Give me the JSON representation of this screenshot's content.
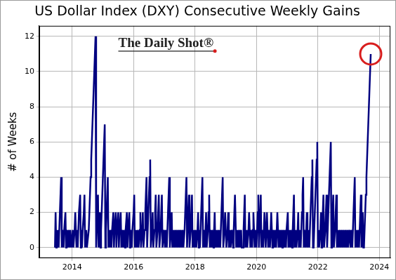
{
  "chart_data": {
    "type": "line",
    "title": "US Dollar Index (DXY) Consecutive Weekly Gains",
    "y_label": "# of Weeks",
    "annotation": "The Daily Shot®",
    "color": "#000080",
    "grid": true,
    "xlim": [
      2012.93,
      2024.36
    ],
    "xticks": [
      2014,
      2016,
      2018,
      2020,
      2022,
      2024
    ],
    "ylim": [
      -0.6,
      12.6
    ],
    "yticks": [
      0,
      2,
      4,
      6,
      8,
      10,
      12
    ],
    "x": [
      2013.44,
      2013.46,
      2013.48,
      2013.5,
      2013.52,
      2013.54,
      2013.56,
      2013.58,
      2013.6,
      2013.62,
      2013.64,
      2013.66,
      2013.68,
      2013.72,
      2013.74,
      2013.78,
      2013.8,
      2013.82,
      2013.86,
      2013.88,
      2013.92,
      2013.94,
      2013.98,
      2014.02,
      2014.04,
      2014.08,
      2014.1,
      2014.14,
      2014.16,
      2014.18,
      2014.2,
      2014.22,
      2014.26,
      2014.28,
      2014.3,
      2014.32,
      2014.34,
      2014.38,
      2014.4,
      2014.42,
      2014.46,
      2014.48,
      2014.54,
      2014.56,
      2014.58,
      2014.6,
      2014.62,
      2014.64,
      2014.66,
      2014.68,
      2014.7,
      2014.72,
      2014.74,
      2014.76,
      2014.78,
      2014.8,
      2014.82,
      2014.84,
      2014.86,
      2014.88,
      2014.9,
      2014.92,
      2014.94,
      2014.96,
      2014.98,
      2015.0,
      2015.02,
      2015.04,
      2015.06,
      2015.08,
      2015.1,
      2015.12,
      2015.14,
      2015.16,
      2015.18,
      2015.2,
      2015.22,
      2015.26,
      2015.28,
      2015.3,
      2015.34,
      2015.36,
      2015.38,
      2015.42,
      2015.44,
      2015.46,
      2015.5,
      2015.52,
      2015.54,
      2015.58,
      2015.6,
      2015.62,
      2015.66,
      2015.68,
      2015.72,
      2015.74,
      2015.78,
      2015.8,
      2015.82,
      2015.86,
      2015.88,
      2015.9,
      2015.94,
      2015.96,
      2016.0,
      2016.02,
      2016.04,
      2016.08,
      2016.1,
      2016.14,
      2016.16,
      2016.2,
      2016.22,
      2016.24,
      2016.28,
      2016.3,
      2016.32,
      2016.36,
      2016.38,
      2016.4,
      2016.42,
      2016.44,
      2016.46,
      2016.48,
      2016.5,
      2016.52,
      2016.54,
      2016.56,
      2016.6,
      2016.62,
      2016.64,
      2016.68,
      2016.7,
      2016.72,
      2016.74,
      2016.78,
      2016.8,
      2016.82,
      2016.84,
      2016.88,
      2016.9,
      2016.92,
      2016.94,
      2016.98,
      2017.02,
      2017.04,
      2017.08,
      2017.1,
      2017.12,
      2017.14,
      2017.16,
      2017.18,
      2017.22,
      2017.24,
      2017.26,
      2017.3,
      2017.32,
      2017.36,
      2017.38,
      2017.42,
      2017.44,
      2017.48,
      2017.5,
      2017.54,
      2017.56,
      2017.6,
      2017.62,
      2017.66,
      2017.68,
      2017.7,
      2017.72,
      2017.74,
      2017.76,
      2017.78,
      2017.8,
      2017.82,
      2017.86,
      2017.88,
      2017.9,
      2017.92,
      2017.96,
      2017.98,
      2018.02,
      2018.04,
      2018.08,
      2018.1,
      2018.12,
      2018.14,
      2018.16,
      2018.18,
      2018.2,
      2018.22,
      2018.24,
      2018.26,
      2018.28,
      2018.32,
      2018.34,
      2018.36,
      2018.38,
      2018.42,
      2018.44,
      2018.46,
      2018.48,
      2018.5,
      2018.54,
      2018.56,
      2018.6,
      2018.62,
      2018.64,
      2018.66,
      2018.7,
      2018.72,
      2018.76,
      2018.78,
      2018.8,
      2018.82,
      2018.84,
      2018.86,
      2018.88,
      2018.9,
      2018.92,
      2018.96,
      2018.98,
      2019.02,
      2019.06,
      2019.08,
      2019.1,
      2019.14,
      2019.16,
      2019.2,
      2019.24,
      2019.26,
      2019.28,
      2019.3,
      2019.34,
      2019.38,
      2019.4,
      2019.44,
      2019.46,
      2019.5,
      2019.52,
      2019.56,
      2019.58,
      2019.6,
      2019.62,
      2019.64,
      2019.68,
      2019.7,
      2019.74,
      2019.76,
      2019.8,
      2019.82,
      2019.86,
      2019.88,
      2019.9,
      2019.94,
      2019.96,
      2020.0,
      2020.02,
      2020.04,
      2020.06,
      2020.08,
      2020.1,
      2020.12,
      2020.14,
      2020.16,
      2020.18,
      2020.22,
      2020.24,
      2020.26,
      2020.3,
      2020.32,
      2020.34,
      2020.38,
      2020.4,
      2020.44,
      2020.46,
      2020.48,
      2020.52,
      2020.54,
      2020.58,
      2020.6,
      2020.64,
      2020.66,
      2020.68,
      2020.72,
      2020.74,
      2020.78,
      2020.8,
      2020.84,
      2020.86,
      2020.9,
      2020.92,
      2020.96,
      2020.98,
      2021.02,
      2021.04,
      2021.08,
      2021.1,
      2021.12,
      2021.16,
      2021.18,
      2021.2,
      2021.22,
      2021.24,
      2021.28,
      2021.3,
      2021.34,
      2021.36,
      2021.38,
      2021.42,
      2021.44,
      2021.46,
      2021.48,
      2021.5,
      2021.52,
      2021.54,
      2021.56,
      2021.6,
      2021.62,
      2021.64,
      2021.66,
      2021.7,
      2021.72,
      2021.74,
      2021.76,
      2021.78,
      2021.8,
      2021.82,
      2021.84,
      2021.86,
      2021.88,
      2021.9,
      2021.92,
      2021.94,
      2021.96,
      2021.98,
      2022.0,
      2022.02,
      2022.04,
      2022.08,
      2022.1,
      2022.12,
      2022.14,
      2022.16,
      2022.18,
      2022.2,
      2022.24,
      2022.26,
      2022.28,
      2022.3,
      2022.32,
      2022.34,
      2022.36,
      2022.38,
      2022.4,
      2022.42,
      2022.44,
      2022.46,
      2022.48,
      2022.5,
      2022.52,
      2022.56,
      2022.58,
      2022.6,
      2022.62,
      2022.66,
      2022.68,
      2022.72,
      2022.74,
      2022.78,
      2022.8,
      2022.84,
      2022.86,
      2022.9,
      2022.92,
      2022.96,
      2022.98,
      2023.02,
      2023.06,
      2023.08,
      2023.12,
      2023.14,
      2023.16,
      2023.18,
      2023.2,
      2023.22,
      2023.26,
      2023.28,
      2023.32,
      2023.34,
      2023.36,
      2023.38,
      2023.4,
      2023.42,
      2023.44,
      2023.46,
      2023.48,
      2023.5,
      2023.52,
      2023.54,
      2023.56,
      2023.58,
      2023.6,
      2023.62,
      2023.64,
      2023.66,
      2023.68,
      2023.7,
      2023.72
    ],
    "values": [
      0,
      2,
      0,
      1,
      0,
      1,
      0,
      1,
      2,
      3,
      4,
      0,
      1,
      0,
      1,
      2,
      0,
      1,
      0,
      1,
      0,
      1,
      0,
      1,
      0,
      1,
      2,
      0,
      1,
      0,
      1,
      2,
      3,
      0,
      1,
      0,
      1,
      2,
      3,
      0,
      1,
      0,
      1,
      2,
      3,
      4,
      5,
      6,
      7,
      8,
      9,
      10,
      11,
      12,
      0,
      1,
      2,
      3,
      0,
      1,
      2,
      0,
      1,
      2,
      3,
      4,
      5,
      6,
      7,
      0,
      1,
      2,
      3,
      4,
      0,
      1,
      0,
      1,
      0,
      1,
      2,
      0,
      1,
      2,
      0,
      1,
      2,
      0,
      1,
      2,
      0,
      1,
      0,
      1,
      0,
      1,
      2,
      0,
      1,
      2,
      0,
      1,
      0,
      1,
      2,
      3,
      0,
      1,
      0,
      1,
      0,
      1,
      2,
      0,
      1,
      2,
      0,
      1,
      2,
      3,
      4,
      0,
      1,
      2,
      3,
      4,
      5,
      0,
      1,
      2,
      0,
      1,
      2,
      3,
      0,
      1,
      2,
      3,
      0,
      1,
      2,
      3,
      0,
      1,
      0,
      1,
      0,
      1,
      2,
      3,
      4,
      0,
      1,
      2,
      0,
      1,
      0,
      1,
      0,
      1,
      0,
      1,
      0,
      1,
      0,
      1,
      0,
      1,
      2,
      3,
      4,
      0,
      1,
      2,
      3,
      0,
      1,
      2,
      3,
      0,
      1,
      0,
      1,
      0,
      1,
      2,
      0,
      1,
      0,
      1,
      2,
      3,
      4,
      0,
      1,
      0,
      1,
      2,
      0,
      1,
      2,
      3,
      0,
      1,
      0,
      1,
      0,
      1,
      2,
      0,
      1,
      0,
      1,
      0,
      1,
      0,
      1,
      2,
      3,
      4,
      0,
      1,
      2,
      0,
      1,
      2,
      0,
      1,
      0,
      1,
      0,
      1,
      2,
      3,
      0,
      1,
      0,
      1,
      0,
      1,
      0,
      0,
      1,
      2,
      3,
      0,
      1,
      0,
      1,
      2,
      0,
      1,
      0,
      1,
      2,
      0,
      1,
      0,
      1,
      2,
      3,
      0,
      1,
      2,
      3,
      0,
      1,
      0,
      1,
      2,
      0,
      1,
      2,
      0,
      1,
      0,
      1,
      2,
      0,
      1,
      0,
      1,
      0,
      1,
      2,
      0,
      1,
      0,
      1,
      0,
      1,
      0,
      1,
      0,
      1,
      2,
      0,
      1,
      0,
      1,
      0,
      1,
      2,
      3,
      0,
      1,
      0,
      1,
      2,
      0,
      1,
      0,
      1,
      2,
      3,
      4,
      0,
      1,
      0,
      1,
      2,
      0,
      1,
      0,
      1,
      2,
      3,
      4,
      5,
      0,
      0,
      1,
      2,
      3,
      4,
      5,
      6,
      0,
      1,
      0,
      1,
      2,
      0,
      1,
      2,
      3,
      0,
      1,
      2,
      3,
      0,
      1,
      2,
      3,
      4,
      5,
      6,
      0,
      1,
      2,
      3,
      0,
      1,
      2,
      3,
      0,
      1,
      0,
      1,
      0,
      1,
      0,
      1,
      0,
      1,
      0,
      1,
      0,
      1,
      0,
      1,
      0,
      1,
      2,
      3,
      4,
      0,
      1,
      0,
      1,
      0,
      1,
      2,
      3,
      0,
      1,
      2,
      0,
      0,
      1,
      2,
      3,
      4,
      5,
      6,
      7,
      8,
      9,
      10,
      11
    ]
  }
}
